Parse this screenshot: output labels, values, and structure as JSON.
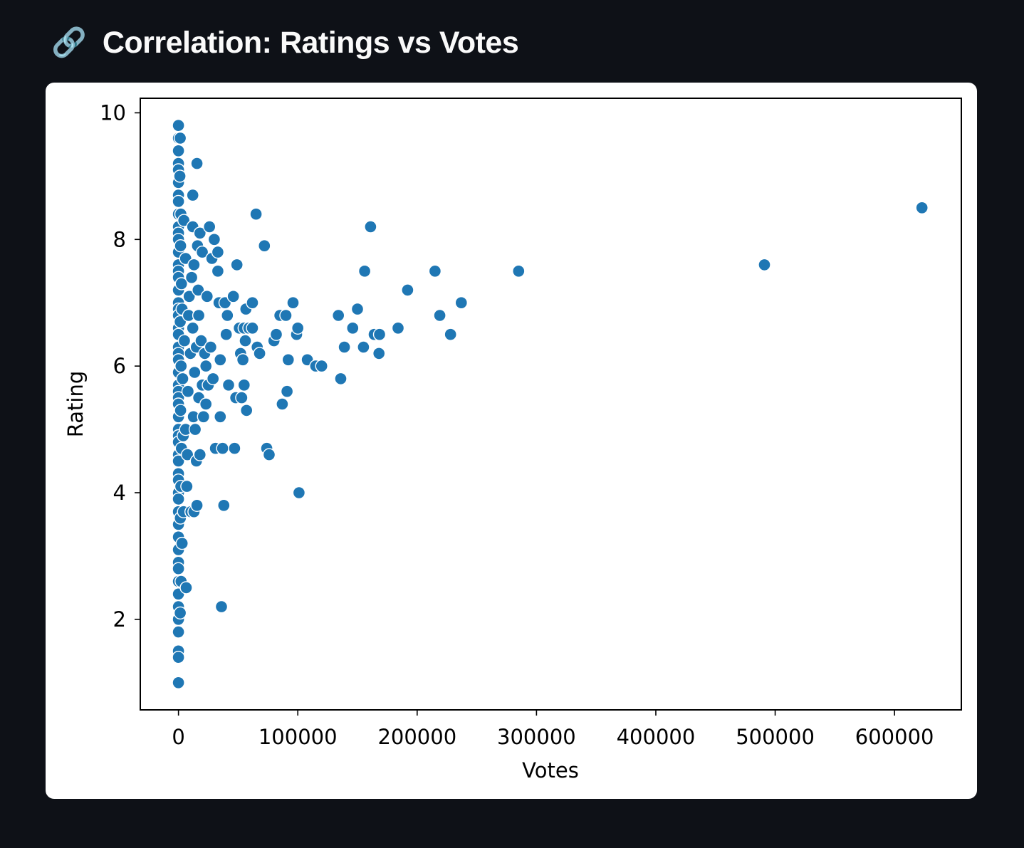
{
  "header": {
    "icon_name": "link-icon",
    "icon_glyph": "🔗",
    "title": "Correlation: Ratings vs Votes"
  },
  "chart_data": {
    "type": "scatter",
    "title": "",
    "xlabel": "Votes",
    "ylabel": "Rating",
    "xlim": [
      -32000,
      656000
    ],
    "ylim": [
      0.57,
      10.23
    ],
    "xticks": [
      0,
      100000,
      200000,
      300000,
      400000,
      500000,
      600000
    ],
    "yticks": [
      2,
      4,
      6,
      8,
      10
    ],
    "grid": false,
    "legend": "none",
    "marker_color": "#1f77b4",
    "points": [
      [
        0,
        9.8
      ],
      [
        0,
        9.6
      ],
      [
        0,
        9.4
      ],
      [
        0,
        9.2
      ],
      [
        0,
        9.1
      ],
      [
        0,
        8.9
      ],
      [
        0,
        8.7
      ],
      [
        0,
        8.6
      ],
      [
        0,
        8.4
      ],
      [
        0,
        8.2
      ],
      [
        0,
        8.1
      ],
      [
        0,
        8.0
      ],
      [
        0,
        7.8
      ],
      [
        0,
        7.6
      ],
      [
        0,
        7.5
      ],
      [
        0,
        7.4
      ],
      [
        0,
        7.2
      ],
      [
        0,
        7.0
      ],
      [
        0,
        6.9
      ],
      [
        0,
        6.8
      ],
      [
        0,
        6.6
      ],
      [
        0,
        6.5
      ],
      [
        0,
        6.3
      ],
      [
        0,
        6.2
      ],
      [
        0,
        6.1
      ],
      [
        0,
        5.9
      ],
      [
        0,
        5.7
      ],
      [
        0,
        5.6
      ],
      [
        0,
        5.5
      ],
      [
        0,
        5.4
      ],
      [
        0,
        5.2
      ],
      [
        0,
        5.0
      ],
      [
        0,
        4.9
      ],
      [
        0,
        4.8
      ],
      [
        0,
        4.6
      ],
      [
        0,
        4.5
      ],
      [
        0,
        4.3
      ],
      [
        0,
        4.2
      ],
      [
        0,
        4.0
      ],
      [
        0,
        3.9
      ],
      [
        0,
        3.7
      ],
      [
        0,
        3.5
      ],
      [
        0,
        3.3
      ],
      [
        0,
        3.1
      ],
      [
        0,
        2.9
      ],
      [
        0,
        2.8
      ],
      [
        0,
        2.6
      ],
      [
        0,
        2.4
      ],
      [
        0,
        2.2
      ],
      [
        0,
        2.0
      ],
      [
        0,
        1.8
      ],
      [
        0,
        1.5
      ],
      [
        0,
        1.4
      ],
      [
        0,
        1.0
      ],
      [
        1500,
        9.6
      ],
      [
        1200,
        9.0
      ],
      [
        2000,
        8.4
      ],
      [
        1800,
        7.9
      ],
      [
        2500,
        7.3
      ],
      [
        1500,
        6.7
      ],
      [
        2200,
        6.0
      ],
      [
        1800,
        5.3
      ],
      [
        2500,
        4.7
      ],
      [
        2000,
        4.1
      ],
      [
        1600,
        3.6
      ],
      [
        3000,
        3.2
      ],
      [
        2200,
        2.6
      ],
      [
        1500,
        2.1
      ],
      [
        3000,
        6.9
      ],
      [
        3500,
        5.8
      ],
      [
        4000,
        4.9
      ],
      [
        4500,
        8.3
      ],
      [
        5000,
        6.4
      ],
      [
        4200,
        3.7
      ],
      [
        6500,
        2.5
      ],
      [
        6000,
        5.0
      ],
      [
        7000,
        4.1
      ],
      [
        6000,
        7.7
      ],
      [
        7500,
        4.6
      ],
      [
        8000,
        5.6
      ],
      [
        8500,
        6.8
      ],
      [
        9000,
        7.1
      ],
      [
        10000,
        6.2
      ],
      [
        10500,
        3.7
      ],
      [
        11000,
        7.4
      ],
      [
        12000,
        8.7
      ],
      [
        12000,
        8.2
      ],
      [
        12000,
        6.6
      ],
      [
        12500,
        5.2
      ],
      [
        13000,
        3.7
      ],
      [
        13000,
        7.6
      ],
      [
        13500,
        5.9
      ],
      [
        14000,
        5.0
      ],
      [
        15000,
        4.5
      ],
      [
        15000,
        6.3
      ],
      [
        15500,
        9.2
      ],
      [
        15500,
        3.8
      ],
      [
        16000,
        7.9
      ],
      [
        16500,
        7.2
      ],
      [
        17000,
        6.8
      ],
      [
        17000,
        5.5
      ],
      [
        18000,
        8.1
      ],
      [
        18000,
        4.6
      ],
      [
        19000,
        6.4
      ],
      [
        20000,
        5.7
      ],
      [
        20000,
        7.8
      ],
      [
        21000,
        5.2
      ],
      [
        22000,
        6.2
      ],
      [
        23000,
        6.0
      ],
      [
        23000,
        5.4
      ],
      [
        24000,
        7.1
      ],
      [
        25000,
        5.7
      ],
      [
        26000,
        8.2
      ],
      [
        27000,
        6.3
      ],
      [
        28000,
        7.7
      ],
      [
        29000,
        5.8
      ],
      [
        30000,
        8.0
      ],
      [
        31000,
        4.7
      ],
      [
        33000,
        7.5
      ],
      [
        33000,
        7.8
      ],
      [
        34000,
        7.0
      ],
      [
        35000,
        5.2
      ],
      [
        35000,
        6.1
      ],
      [
        36000,
        2.2
      ],
      [
        37000,
        4.7
      ],
      [
        38000,
        3.8
      ],
      [
        39000,
        7.0
      ],
      [
        40000,
        6.5
      ],
      [
        41000,
        6.8
      ],
      [
        42000,
        5.7
      ],
      [
        46000,
        7.1
      ],
      [
        47000,
        4.7
      ],
      [
        48000,
        5.5
      ],
      [
        49000,
        7.6
      ],
      [
        51000,
        6.6
      ],
      [
        52000,
        6.2
      ],
      [
        53000,
        5.5
      ],
      [
        54000,
        6.1
      ],
      [
        55000,
        6.6
      ],
      [
        55000,
        5.7
      ],
      [
        56000,
        6.4
      ],
      [
        56500,
        6.9
      ],
      [
        57000,
        5.3
      ],
      [
        59000,
        6.6
      ],
      [
        62000,
        6.6
      ],
      [
        62000,
        7.0
      ],
      [
        65000,
        8.4
      ],
      [
        66000,
        6.3
      ],
      [
        68000,
        6.2
      ],
      [
        72000,
        7.9
      ],
      [
        74000,
        4.7
      ],
      [
        76000,
        4.6
      ],
      [
        80000,
        6.4
      ],
      [
        82000,
        6.5
      ],
      [
        85000,
        6.8
      ],
      [
        87000,
        5.4
      ],
      [
        90000,
        6.8
      ],
      [
        91000,
        5.6
      ],
      [
        92000,
        6.1
      ],
      [
        96000,
        7.0
      ],
      [
        99000,
        6.5
      ],
      [
        100000,
        6.6
      ],
      [
        101000,
        4.0
      ],
      [
        108000,
        6.1
      ],
      [
        115000,
        6.0
      ],
      [
        120000,
        6.0
      ],
      [
        134000,
        6.8
      ],
      [
        136000,
        5.8
      ],
      [
        139000,
        6.3
      ],
      [
        146000,
        6.6
      ],
      [
        150000,
        6.9
      ],
      [
        155000,
        6.3
      ],
      [
        156000,
        7.5
      ],
      [
        161000,
        8.2
      ],
      [
        164000,
        6.5
      ],
      [
        168000,
        6.2
      ],
      [
        168500,
        6.5
      ],
      [
        184000,
        6.6
      ],
      [
        192000,
        7.2
      ],
      [
        215000,
        7.5
      ],
      [
        219000,
        6.8
      ],
      [
        228000,
        6.5
      ],
      [
        237000,
        7.0
      ],
      [
        285000,
        7.5
      ],
      [
        491000,
        7.6
      ],
      [
        623000,
        8.5
      ]
    ]
  }
}
